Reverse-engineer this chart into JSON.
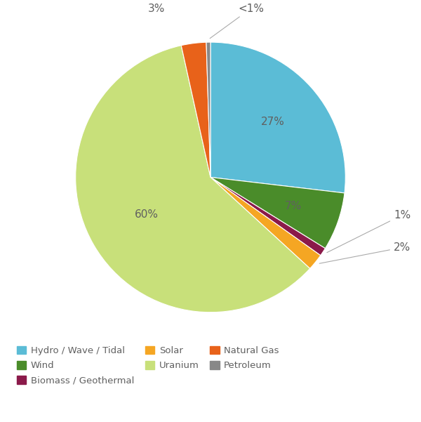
{
  "labels": [
    "Hydro / Wave / Tidal",
    "Wind",
    "Biomass / Geothermal",
    "Solar",
    "Uranium",
    "Natural Gas",
    "Petroleum"
  ],
  "values": [
    27,
    7,
    1,
    2,
    60,
    3,
    0.5
  ],
  "pct_labels": [
    "27%",
    "7%",
    "1%",
    "2%",
    "60%",
    "3%",
    "<1%"
  ],
  "colors": [
    "#5bbcd6",
    "#4a8c2a",
    "#8b1a4a",
    "#f5a623",
    "#c8e07a",
    "#e8621a",
    "#888888"
  ],
  "background_color": "#ffffff",
  "text_color": "#606060",
  "legend_fontsize": 9.5,
  "autopct_fontsize": 11,
  "startangle": 90,
  "figsize": [
    6.0,
    6.01
  ]
}
